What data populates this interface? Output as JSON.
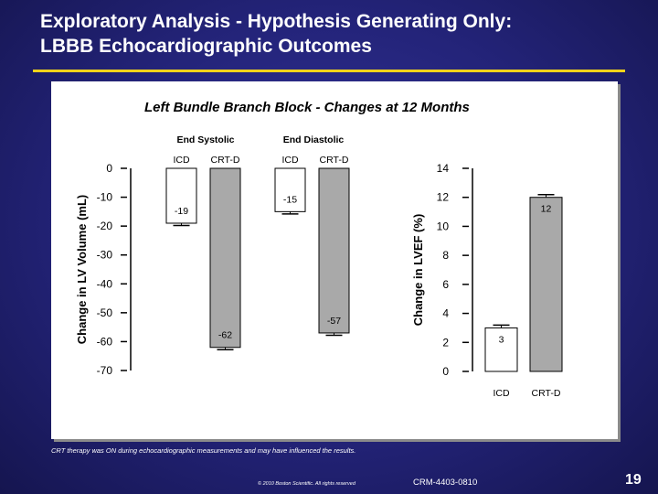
{
  "slide": {
    "title_line1": "Exploratory Analysis -  Hypothesis Generating Only:",
    "title_line2": "LBBB Echocardiographic Outcomes",
    "note": "CRT therapy was ON during echocardiographic measurements and may have influenced the results.",
    "copyright": "© 2010 Boston Scientific. All rights reserved",
    "document_code": "CRM-4403-0810",
    "page_number": "19",
    "accent_color": "#f2d21a",
    "background_color": "#232378"
  },
  "chart_data": {
    "type": "bar",
    "title": "Left Bundle Branch Block - Changes at 12 Months",
    "panels": [
      {
        "ylabel": "Change in LV Volume (mL)",
        "ylim": [
          -70,
          0
        ],
        "yticks": [
          0,
          -10,
          -20,
          -30,
          -40,
          -50,
          -60,
          -70
        ],
        "groups": [
          {
            "label": "End Systolic",
            "categories": [
              "ICD",
              "CRT-D"
            ],
            "values": [
              -19,
              -62
            ]
          },
          {
            "label": "End Diastolic",
            "categories": [
              "ICD",
              "CRT-D"
            ],
            "values": [
              -15,
              -57
            ]
          }
        ]
      },
      {
        "ylabel": "Change in LVEF (%)",
        "ylim": [
          0,
          14
        ],
        "yticks": [
          14,
          12,
          10,
          8,
          6,
          4,
          2,
          0
        ],
        "categories": [
          "ICD",
          "CRT-D"
        ],
        "values": [
          3,
          12
        ]
      }
    ],
    "series_colors": {
      "ICD": "#ffffff",
      "CRT-D": "#a9a9a9"
    },
    "grid": false,
    "error_bars": true
  }
}
